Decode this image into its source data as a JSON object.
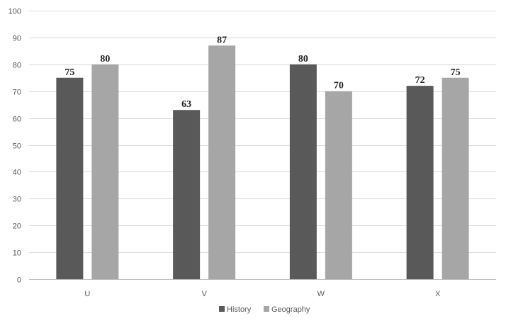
{
  "chart_data": {
    "type": "bar",
    "title": "",
    "xlabel": "",
    "ylabel": "",
    "categories": [
      "U",
      "V",
      "W",
      "X"
    ],
    "series": [
      {
        "name": "History",
        "color": "#595959",
        "values": [
          75,
          63,
          80,
          72
        ]
      },
      {
        "name": "Geography",
        "color": "#a6a6a6",
        "values": [
          80,
          87,
          70,
          75
        ]
      }
    ],
    "ylim": [
      0,
      100
    ],
    "yticks": [
      0,
      10,
      20,
      30,
      40,
      50,
      60,
      70,
      80,
      90,
      100
    ],
    "grid": true,
    "legend": "bottom-center",
    "data_labels": true
  }
}
